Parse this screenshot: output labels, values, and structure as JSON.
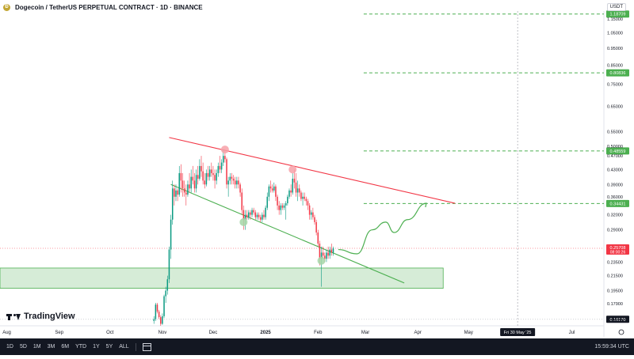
{
  "header": {
    "title": "Dogecoin / TetherUS PERPETUAL CONTRACT · 1D · BINANCE",
    "currency": "USDT"
  },
  "branding": {
    "logo_text": "TradingView"
  },
  "bottom_bar": {
    "timeframes": [
      "1D",
      "5D",
      "1M",
      "3M",
      "6M",
      "YTD",
      "1Y",
      "5Y",
      "ALL"
    ],
    "clock": "15:59:34 UTC"
  },
  "colors": {
    "up": "#089981",
    "down": "#f23645",
    "resistance": "#f23645",
    "support": "#4caf50",
    "target_line": "#4caf50",
    "zone_fill": "#c8e6c9",
    "price_tag": "#f23645",
    "axis_text": "#131722"
  },
  "chart_data": {
    "type": "candlestick",
    "symbol": "DOGEUSDT.P",
    "interval": "1D",
    "y_scale": "log",
    "ylim": [
      0.155,
      1.21
    ],
    "y_ticks": [
      "1.15000",
      "1.05000",
      "0.95000",
      "0.85000",
      "0.75000",
      "0.65000",
      "0.55000",
      "0.50000",
      "0.47000",
      "0.43000",
      "0.39000",
      "0.36000",
      "0.32000",
      "0.29000",
      "0.23500",
      "0.21500",
      "0.19500",
      "0.17900",
      "0.16000"
    ],
    "x_ticks": [
      "Aug",
      "Sep",
      "Oct",
      "Nov",
      "Dec",
      "2025",
      "Feb",
      "Mar",
      "Apr",
      "May",
      "Jul"
    ],
    "date_range": [
      "2024-07-28",
      "2025-07-20"
    ],
    "crosshair": {
      "date": "2025-05-30",
      "label": "Fri 30 May '25"
    },
    "last_price": {
      "value": "0.25708",
      "countdown": "08:00:26"
    },
    "horizontal_levels": [
      {
        "value": "1.18709",
        "style": "dashed",
        "color": "green",
        "from": "2025-02-28"
      },
      {
        "value": "0.80836",
        "style": "dashed",
        "color": "green",
        "from": "2025-02-28"
      },
      {
        "value": "0.48559",
        "style": "dashed",
        "color": "green",
        "from": "2025-02-28"
      },
      {
        "value": "0.34431",
        "style": "dashed",
        "color": "green",
        "from": "2025-02-28"
      },
      {
        "value": "0.16170",
        "style": "dotted",
        "color": "gray",
        "from": "2024-07-28"
      }
    ],
    "trendlines": [
      {
        "name": "",
        "color": "red",
        "points": [
          [
            "2024-11-05",
            0.53
          ],
          [
            "2025-04-23",
            0.345
          ]
        ]
      },
      {
        "name": "",
        "color": "green",
        "points": [
          [
            "2024-11-06",
            0.39
          ],
          [
            "2025-03-24",
            0.205
          ]
        ]
      }
    ],
    "zone": {
      "from": "2024-07-28",
      "to": "2025-04-16",
      "low": 0.198,
      "high": 0.226
    },
    "markers": [
      {
        "date": "2024-12-08",
        "price": 0.49,
        "color": "red"
      },
      {
        "date": "2025-01-17",
        "price": 0.43,
        "color": "red"
      },
      {
        "date": "2024-12-19",
        "price": 0.305,
        "color": "green"
      },
      {
        "date": "2025-02-03",
        "price": 0.237,
        "color": "green"
      }
    ],
    "projection": [
      [
        "2025-02-13",
        0.255
      ],
      [
        "2025-02-24",
        0.248
      ],
      [
        "2025-03-05",
        0.29
      ],
      [
        "2025-03-13",
        0.305
      ],
      [
        "2025-03-18",
        0.285
      ],
      [
        "2025-03-26",
        0.31
      ],
      [
        "2025-04-06",
        0.345
      ]
    ],
    "candles": [
      [
        "2024-10-27",
        0.16,
        0.165,
        0.157,
        0.162
      ],
      [
        "2024-10-28",
        0.162,
        0.18,
        0.16,
        0.178
      ],
      [
        "2024-10-29",
        0.178,
        0.18,
        0.168,
        0.17
      ],
      [
        "2024-10-30",
        0.17,
        0.172,
        0.162,
        0.164
      ],
      [
        "2024-10-31",
        0.164,
        0.166,
        0.155,
        0.157
      ],
      [
        "2024-11-01",
        0.157,
        0.168,
        0.156,
        0.165
      ],
      [
        "2024-11-02",
        0.165,
        0.19,
        0.163,
        0.188
      ],
      [
        "2024-11-03",
        0.188,
        0.2,
        0.18,
        0.195
      ],
      [
        "2024-11-04",
        0.195,
        0.215,
        0.19,
        0.21
      ],
      [
        "2024-11-05",
        0.21,
        0.26,
        0.205,
        0.255
      ],
      [
        "2024-11-06",
        0.255,
        0.32,
        0.24,
        0.31
      ],
      [
        "2024-11-07",
        0.31,
        0.4,
        0.3,
        0.38
      ],
      [
        "2024-11-08",
        0.38,
        0.39,
        0.34,
        0.36
      ],
      [
        "2024-11-09",
        0.36,
        0.39,
        0.35,
        0.375
      ],
      [
        "2024-11-10",
        0.375,
        0.38,
        0.35,
        0.365
      ],
      [
        "2024-11-11",
        0.365,
        0.44,
        0.36,
        0.42
      ],
      [
        "2024-11-12",
        0.42,
        0.445,
        0.37,
        0.4
      ],
      [
        "2024-11-13",
        0.4,
        0.42,
        0.36,
        0.38
      ],
      [
        "2024-11-14",
        0.38,
        0.4,
        0.36,
        0.37
      ],
      [
        "2024-11-15",
        0.37,
        0.39,
        0.34,
        0.365
      ],
      [
        "2024-11-16",
        0.365,
        0.4,
        0.36,
        0.39
      ],
      [
        "2024-11-17",
        0.39,
        0.42,
        0.37,
        0.38
      ],
      [
        "2024-11-18",
        0.38,
        0.43,
        0.37,
        0.41
      ],
      [
        "2024-11-19",
        0.41,
        0.44,
        0.39,
        0.4
      ],
      [
        "2024-11-20",
        0.4,
        0.42,
        0.37,
        0.38
      ],
      [
        "2024-11-21",
        0.38,
        0.43,
        0.37,
        0.415
      ],
      [
        "2024-11-22",
        0.415,
        0.44,
        0.39,
        0.405
      ],
      [
        "2024-11-23",
        0.405,
        0.46,
        0.4,
        0.44
      ],
      [
        "2024-11-24",
        0.44,
        0.47,
        0.41,
        0.425
      ],
      [
        "2024-11-25",
        0.425,
        0.45,
        0.39,
        0.4
      ],
      [
        "2024-11-26",
        0.4,
        0.42,
        0.38,
        0.39
      ],
      [
        "2024-11-27",
        0.39,
        0.43,
        0.385,
        0.42
      ],
      [
        "2024-11-28",
        0.42,
        0.44,
        0.4,
        0.41
      ],
      [
        "2024-11-29",
        0.41,
        0.44,
        0.4,
        0.43
      ],
      [
        "2024-11-30",
        0.43,
        0.45,
        0.41,
        0.42
      ],
      [
        "2024-12-01",
        0.42,
        0.44,
        0.4,
        0.415
      ],
      [
        "2024-12-02",
        0.415,
        0.43,
        0.38,
        0.4
      ],
      [
        "2024-12-03",
        0.4,
        0.43,
        0.39,
        0.42
      ],
      [
        "2024-12-04",
        0.42,
        0.45,
        0.41,
        0.44
      ],
      [
        "2024-12-05",
        0.44,
        0.47,
        0.42,
        0.43
      ],
      [
        "2024-12-06",
        0.43,
        0.46,
        0.42,
        0.45
      ],
      [
        "2024-12-07",
        0.45,
        0.49,
        0.44,
        0.47
      ],
      [
        "2024-12-08",
        0.47,
        0.49,
        0.45,
        0.46
      ],
      [
        "2024-12-09",
        0.46,
        0.465,
        0.38,
        0.39
      ],
      [
        "2024-12-10",
        0.39,
        0.41,
        0.36,
        0.4
      ],
      [
        "2024-12-11",
        0.4,
        0.42,
        0.39,
        0.41
      ],
      [
        "2024-12-12",
        0.41,
        0.42,
        0.39,
        0.405
      ],
      [
        "2024-12-13",
        0.405,
        0.415,
        0.39,
        0.4
      ],
      [
        "2024-12-14",
        0.4,
        0.41,
        0.38,
        0.39
      ],
      [
        "2024-12-15",
        0.39,
        0.41,
        0.38,
        0.4
      ],
      [
        "2024-12-16",
        0.4,
        0.41,
        0.38,
        0.39
      ],
      [
        "2024-12-17",
        0.39,
        0.395,
        0.36,
        0.37
      ],
      [
        "2024-12-18",
        0.37,
        0.38,
        0.32,
        0.33
      ],
      [
        "2024-12-19",
        0.33,
        0.34,
        0.29,
        0.31
      ],
      [
        "2024-12-20",
        0.31,
        0.33,
        0.29,
        0.32
      ],
      [
        "2024-12-21",
        0.32,
        0.33,
        0.31,
        0.315
      ],
      [
        "2024-12-22",
        0.315,
        0.33,
        0.31,
        0.325
      ],
      [
        "2024-12-23",
        0.325,
        0.33,
        0.31,
        0.32
      ],
      [
        "2024-12-24",
        0.32,
        0.335,
        0.315,
        0.33
      ],
      [
        "2024-12-25",
        0.33,
        0.335,
        0.32,
        0.325
      ],
      [
        "2024-12-26",
        0.325,
        0.33,
        0.31,
        0.315
      ],
      [
        "2024-12-27",
        0.315,
        0.325,
        0.31,
        0.32
      ],
      [
        "2024-12-28",
        0.32,
        0.325,
        0.31,
        0.315
      ],
      [
        "2024-12-29",
        0.315,
        0.32,
        0.305,
        0.31
      ],
      [
        "2024-12-30",
        0.31,
        0.325,
        0.305,
        0.32
      ],
      [
        "2024-12-31",
        0.32,
        0.33,
        0.31,
        0.315
      ],
      [
        "2025-01-01",
        0.315,
        0.34,
        0.31,
        0.335
      ],
      [
        "2025-01-02",
        0.335,
        0.37,
        0.33,
        0.36
      ],
      [
        "2025-01-03",
        0.36,
        0.39,
        0.35,
        0.385
      ],
      [
        "2025-01-04",
        0.385,
        0.4,
        0.37,
        0.38
      ],
      [
        "2025-01-05",
        0.38,
        0.39,
        0.37,
        0.375
      ],
      [
        "2025-01-06",
        0.375,
        0.395,
        0.37,
        0.385
      ],
      [
        "2025-01-07",
        0.385,
        0.39,
        0.35,
        0.36
      ],
      [
        "2025-01-08",
        0.36,
        0.365,
        0.33,
        0.34
      ],
      [
        "2025-01-09",
        0.34,
        0.35,
        0.32,
        0.33
      ],
      [
        "2025-01-10",
        0.33,
        0.345,
        0.32,
        0.34
      ],
      [
        "2025-01-11",
        0.34,
        0.345,
        0.33,
        0.335
      ],
      [
        "2025-01-12",
        0.335,
        0.345,
        0.33,
        0.34
      ],
      [
        "2025-01-13",
        0.34,
        0.35,
        0.31,
        0.345
      ],
      [
        "2025-01-14",
        0.345,
        0.365,
        0.34,
        0.36
      ],
      [
        "2025-01-15",
        0.36,
        0.38,
        0.355,
        0.375
      ],
      [
        "2025-01-16",
        0.375,
        0.39,
        0.36,
        0.37
      ],
      [
        "2025-01-17",
        0.37,
        0.42,
        0.365,
        0.405
      ],
      [
        "2025-01-18",
        0.405,
        0.43,
        0.38,
        0.395
      ],
      [
        "2025-01-19",
        0.395,
        0.42,
        0.36,
        0.37
      ],
      [
        "2025-01-20",
        0.37,
        0.4,
        0.35,
        0.38
      ],
      [
        "2025-01-21",
        0.38,
        0.39,
        0.36,
        0.37
      ],
      [
        "2025-01-22",
        0.37,
        0.375,
        0.35,
        0.355
      ],
      [
        "2025-01-23",
        0.355,
        0.37,
        0.34,
        0.36
      ],
      [
        "2025-01-24",
        0.36,
        0.37,
        0.35,
        0.355
      ],
      [
        "2025-01-25",
        0.355,
        0.36,
        0.34,
        0.35
      ],
      [
        "2025-01-26",
        0.35,
        0.355,
        0.33,
        0.34
      ],
      [
        "2025-01-27",
        0.34,
        0.345,
        0.31,
        0.32
      ],
      [
        "2025-01-28",
        0.32,
        0.33,
        0.31,
        0.325
      ],
      [
        "2025-01-29",
        0.325,
        0.335,
        0.31,
        0.315
      ],
      [
        "2025-01-30",
        0.315,
        0.32,
        0.3,
        0.305
      ],
      [
        "2025-01-31",
        0.305,
        0.31,
        0.28,
        0.285
      ],
      [
        "2025-02-01",
        0.285,
        0.29,
        0.26,
        0.265
      ],
      [
        "2025-02-02",
        0.265,
        0.27,
        0.23,
        0.24
      ],
      [
        "2025-02-03",
        0.24,
        0.26,
        0.2,
        0.25
      ],
      [
        "2025-02-04",
        0.25,
        0.26,
        0.24,
        0.245
      ],
      [
        "2025-02-05",
        0.245,
        0.25,
        0.235,
        0.24
      ],
      [
        "2025-02-06",
        0.24,
        0.255,
        0.235,
        0.25
      ],
      [
        "2025-02-07",
        0.25,
        0.26,
        0.24,
        0.245
      ],
      [
        "2025-02-08",
        0.245,
        0.26,
        0.24,
        0.255
      ],
      [
        "2025-02-09",
        0.255,
        0.265,
        0.245,
        0.25
      ],
      [
        "2025-02-10",
        0.25,
        0.26,
        0.245,
        0.257
      ]
    ]
  }
}
